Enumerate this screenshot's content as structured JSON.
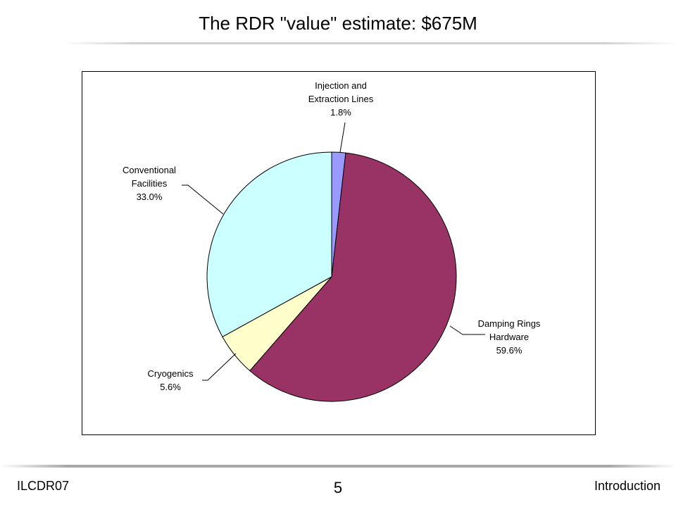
{
  "slide": {
    "title": "The RDR \"value\" estimate: $675M",
    "footer_left": "ILCDR07",
    "page_number": "5",
    "footer_right": "Introduction"
  },
  "chart_data": {
    "type": "pie",
    "title": "",
    "slices": [
      {
        "label_lines": [
          "Injection and",
          "Extraction Lines"
        ],
        "value": 1.8,
        "percent_label": "1.8%",
        "color": "#9999FF"
      },
      {
        "label_lines": [
          "Damping Rings",
          "Hardware"
        ],
        "value": 59.6,
        "percent_label": "59.6%",
        "color": "#993366"
      },
      {
        "label_lines": [
          "Cryogenics"
        ],
        "value": 5.6,
        "percent_label": "5.6%",
        "color": "#FFFFCC"
      },
      {
        "label_lines": [
          "Conventional",
          "Facilities"
        ],
        "value": 33.0,
        "percent_label": "33.0%",
        "color": "#CCFFFF"
      }
    ],
    "start_position": "12 o'clock",
    "direction": "clockwise",
    "legend": "none"
  }
}
